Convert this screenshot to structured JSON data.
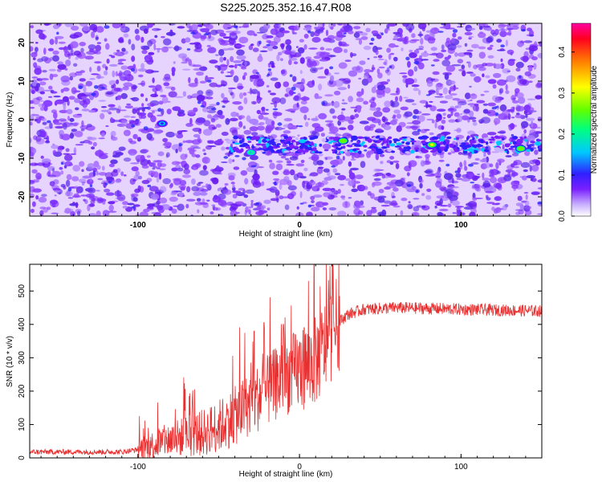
{
  "title": "S225.2025.352.16.47.R08",
  "chart_data": [
    {
      "type": "heatmap",
      "xlabel": "Height of straight line (km)",
      "ylabel": "Frequency (Hz)",
      "xlim": [
        -167,
        150
      ],
      "ylim": [
        -25,
        25
      ],
      "xticks": [
        -100,
        0,
        100
      ],
      "yticks": [
        -20,
        -10,
        0,
        10,
        20
      ],
      "colorbar": {
        "label": "Normalized spectral amplitude",
        "range": [
          0,
          0.47
        ],
        "ticks": [
          0.0,
          0.1,
          0.2,
          0.3,
          0.4
        ]
      },
      "signal_band": {
        "x_range": [
          -45,
          150
        ],
        "frequency": -6.5,
        "frequency_width": 2.5
      },
      "hotspots": [
        {
          "x": -30,
          "freq": -8.5,
          "amplitude": 0.2
        },
        {
          "x": 27,
          "freq": -5.5,
          "amplitude": 0.3
        },
        {
          "x": 82,
          "freq": -6.5,
          "amplitude": 0.32
        },
        {
          "x": 137,
          "freq": -7.5,
          "amplitude": 0.3
        },
        {
          "x": -85,
          "freq": -1,
          "amplitude": 0.15
        }
      ]
    },
    {
      "type": "line",
      "xlabel": "Height of straight line (km)",
      "ylabel": "SNR (10 * v/v)",
      "xlim": [
        -167,
        150
      ],
      "ylim": [
        0,
        580
      ],
      "xticks": [
        -100,
        0,
        100
      ],
      "yticks": [
        0,
        100,
        200,
        300,
        400,
        500
      ],
      "color": "#e83030",
      "profile": [
        {
          "x": -167,
          "y": 18
        },
        {
          "x": -110,
          "y": 18
        },
        {
          "x": -100,
          "y": 25
        },
        {
          "x": -90,
          "y": 40
        },
        {
          "x": -80,
          "y": 55
        },
        {
          "x": -70,
          "y": 65
        },
        {
          "x": -60,
          "y": 75
        },
        {
          "x": -50,
          "y": 95
        },
        {
          "x": -40,
          "y": 125
        },
        {
          "x": -30,
          "y": 165
        },
        {
          "x": -20,
          "y": 200
        },
        {
          "x": -10,
          "y": 240
        },
        {
          "x": 0,
          "y": 265
        },
        {
          "x": 10,
          "y": 290
        },
        {
          "x": 15,
          "y": 330
        },
        {
          "x": 20,
          "y": 375
        },
        {
          "x": 25,
          "y": 410
        },
        {
          "x": 30,
          "y": 430
        },
        {
          "x": 40,
          "y": 445
        },
        {
          "x": 60,
          "y": 450
        },
        {
          "x": 100,
          "y": 445
        },
        {
          "x": 150,
          "y": 440
        }
      ],
      "peaks": [
        {
          "x": 9,
          "y": 580
        },
        {
          "x": -22,
          "y": 405
        },
        {
          "x": -10,
          "y": 400
        },
        {
          "x": -28,
          "y": 380
        },
        {
          "x": 3,
          "y": 390
        }
      ]
    }
  ]
}
